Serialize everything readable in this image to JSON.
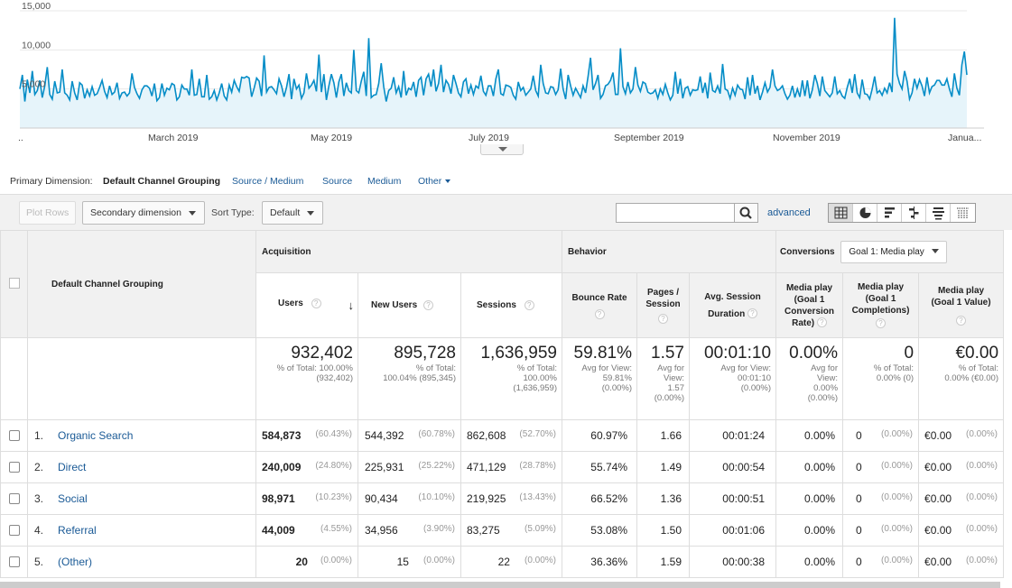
{
  "chart": {
    "y_ticks": [
      "15,000",
      "10,000",
      "5,000"
    ],
    "x_labels": [
      "..",
      "March 2019",
      "May 2019",
      "July 2019",
      "September 2019",
      "November 2019",
      "Janua..."
    ],
    "line_color": "#058dc7",
    "fill_color": "#e6f4fa"
  },
  "chart_data": {
    "type": "area",
    "title": "",
    "ylim": [
      0,
      15000
    ],
    "grid": true,
    "series": [
      {
        "values": [
          5000,
          6800,
          3400,
          6200,
          4500,
          7300,
          4300,
          4800,
          6100,
          3900,
          5400,
          7800,
          4300,
          3700,
          6000,
          4500,
          4600,
          7500,
          4500,
          4200,
          3600,
          6000,
          4500,
          3600,
          5800,
          5500,
          3800,
          4900,
          4100,
          5300,
          4200,
          4400,
          5200,
          6100,
          4700,
          3900,
          5400,
          4300,
          4600,
          5800,
          3800,
          4500,
          4600,
          4100,
          4500,
          7000,
          5200,
          4400,
          3800,
          4900,
          5400,
          5400,
          5100,
          4100,
          5700,
          3500,
          3900,
          5700,
          4200,
          5100,
          4900,
          5700,
          5500,
          3600,
          4000,
          5500,
          5000,
          5000,
          4200,
          7500,
          4200,
          4300,
          6300,
          4000,
          4000,
          6800,
          3700,
          4000,
          4800,
          3600,
          4500,
          5700,
          4100,
          3600,
          5500,
          4600,
          6100,
          5300,
          4700,
          6500,
          6400,
          6600,
          6400,
          4000,
          5100,
          6400,
          6000,
          4100,
          9300,
          4600,
          5200,
          5300,
          4900,
          4400,
          6300,
          5400,
          4000,
          5200,
          6900,
          3700,
          6300,
          5000,
          5500,
          3800,
          4500,
          7000,
          5100,
          5500,
          6100,
          4700,
          9400,
          4600,
          6900,
          3600,
          5400,
          6900,
          5800,
          3900,
          5900,
          6900,
          4100,
          5800,
          4800,
          4500,
          10000,
          4800,
          4500,
          6000,
          7200,
          4100,
          11500,
          3900,
          4200,
          4300,
          5700,
          8300,
          5300,
          3400,
          4800,
          5100,
          6500,
          4500,
          5300,
          3900,
          7300,
          4200,
          5100,
          4900,
          5900,
          4000,
          6100,
          6500,
          4200,
          6300,
          6900,
          5300,
          7500,
          4700,
          5700,
          8100,
          4600,
          6100,
          5600,
          4400,
          6800,
          5700,
          4500,
          4000,
          5900,
          6300,
          4400,
          5500,
          4300,
          5400,
          5100,
          6700,
          4700,
          4200,
          5400,
          5400,
          4100,
          6300,
          7500,
          4400,
          4200,
          5500,
          5400,
          5200,
          4200,
          3700,
          5900,
          4800,
          5200,
          4200,
          4600,
          5000,
          6700,
          4800,
          4100,
          8100,
          5700,
          4500,
          4400,
          5300,
          5200,
          4300,
          4900,
          7600,
          5000,
          3700,
          6800,
          5400,
          4200,
          5100,
          4500,
          3900,
          5400,
          4500,
          6600,
          9000,
          4900,
          5700,
          6800,
          3800,
          4300,
          5400,
          5600,
          6100,
          7100,
          4300,
          4300,
          10200,
          5300,
          4400,
          5900,
          4500,
          5000,
          7800,
          5500,
          4700,
          5900,
          5700,
          4600,
          4400,
          4500,
          4900,
          3800,
          5000,
          4300,
          5600,
          4500,
          3600,
          4200,
          7200,
          4400,
          6300,
          3800,
          5100,
          5300,
          4200,
          4900,
          4800,
          4900,
          6600,
          4500,
          5800,
          3800,
          7100,
          4800,
          4600,
          5400,
          4400,
          8200,
          5000,
          4800,
          3800,
          5100,
          4200,
          5500,
          5000,
          4900,
          3700,
          6500,
          4200,
          6800,
          4400,
          5400,
          3600,
          4600,
          5800,
          4600,
          5200,
          7500,
          5400,
          4800,
          5000,
          5400,
          4400,
          3700,
          4200,
          5400,
          3900,
          5000,
          4000,
          6100,
          4100,
          6100,
          3800,
          4900,
          6800,
          5700,
          4100,
          6600,
          4800,
          4400,
          4000,
          4500,
          6600,
          4400,
          4800,
          4100,
          3800,
          5200,
          6300,
          4500,
          6900,
          4500,
          3900,
          6200,
          4400,
          4300,
          3700,
          5000,
          6600,
          4500,
          4800,
          4200,
          5100,
          4500,
          5800,
          4600,
          14100,
          6900,
          5700,
          5000,
          7300,
          6000,
          3700,
          4500,
          6300,
          5100,
          6200,
          5400,
          4100,
          6500,
          4500,
          5300,
          5500,
          6100,
          6100,
          5500,
          5500,
          6300,
          5000,
          4000,
          7000,
          5100,
          4200,
          8100,
          9800,
          6800
        ]
      }
    ]
  },
  "primary_dimension": {
    "label": "Primary Dimension:",
    "selected": "Default Channel Grouping",
    "options": [
      "Source / Medium",
      "Source",
      "Medium",
      "Other"
    ]
  },
  "toolbar": {
    "plot_rows": "Plot Rows",
    "secondary_dimension": "Secondary dimension",
    "sort_type_label": "Sort Type:",
    "sort_type_value": "Default",
    "search_placeholder": "",
    "advanced": "advanced"
  },
  "table": {
    "dimension_header": "Default Channel Grouping",
    "groups": {
      "acquisition": "Acquisition",
      "behavior": "Behavior",
      "conversions": "Conversions",
      "goal_select": "Goal 1: Media play"
    },
    "columns": {
      "users": "Users",
      "new_users": "New Users",
      "sessions": "Sessions",
      "bounce_rate": "Bounce Rate",
      "pages_session_1": "Pages /",
      "pages_session_2": "Session",
      "avg_duration_1": "Avg. Session",
      "avg_duration_2": "Duration",
      "cr_1": "Media play",
      "cr_2": "(Goal 1",
      "cr_3": "Conversion",
      "cr_4": "Rate)",
      "comp_1": "Media play",
      "comp_2": "(Goal 1",
      "comp_3": "Completions)",
      "val_1": "Media play",
      "val_2": "(Goal 1 Value)"
    },
    "totals": {
      "users": "932,402",
      "users_sub1": "% of Total: 100.00%",
      "users_sub2": "(932,402)",
      "new_users": "895,728",
      "new_users_sub1": "% of Total:",
      "new_users_sub2": "100.04% (895,345)",
      "sessions": "1,636,959",
      "sessions_sub1": "% of Total:",
      "sessions_sub2": "100.00%",
      "sessions_sub3": "(1,636,959)",
      "bounce_rate": "59.81%",
      "bounce_rate_sub1": "Avg for View:",
      "bounce_rate_sub2": "59.81%",
      "bounce_rate_sub3": "(0.00%)",
      "pages": "1.57",
      "pages_sub1": "Avg for",
      "pages_sub2": "View:",
      "pages_sub3": "1.57",
      "pages_sub4": "(0.00%)",
      "duration": "00:01:10",
      "duration_sub1": "Avg for View:",
      "duration_sub2": "00:01:10",
      "duration_sub3": "(0.00%)",
      "cr": "0.00%",
      "cr_sub1": "Avg for",
      "cr_sub2": "View:",
      "cr_sub3": "0.00%",
      "cr_sub4": "(0.00%)",
      "comp": "0",
      "comp_sub1": "% of Total:",
      "comp_sub2": "0.00% (0)",
      "val": "€0.00",
      "val_sub1": "% of Total:",
      "val_sub2": "0.00% (€0.00)"
    },
    "rows": [
      {
        "idx": "1.",
        "name": "Organic Search",
        "users": "584,873",
        "users_pct": "(60.43%)",
        "new_users": "544,392",
        "new_users_pct": "(60.78%)",
        "sessions": "862,608",
        "sessions_pct": "(52.70%)",
        "bounce": "60.97%",
        "pages": "1.66",
        "duration": "00:01:24",
        "cr": "0.00%",
        "comp": "0",
        "comp_pct": "(0.00%)",
        "val": "€0.00",
        "val_pct": "(0.00%)"
      },
      {
        "idx": "2.",
        "name": "Direct",
        "users": "240,009",
        "users_pct": "(24.80%)",
        "new_users": "225,931",
        "new_users_pct": "(25.22%)",
        "sessions": "471,129",
        "sessions_pct": "(28.78%)",
        "bounce": "55.74%",
        "pages": "1.49",
        "duration": "00:00:54",
        "cr": "0.00%",
        "comp": "0",
        "comp_pct": "(0.00%)",
        "val": "€0.00",
        "val_pct": "(0.00%)"
      },
      {
        "idx": "3.",
        "name": "Social",
        "users": "98,971",
        "users_pct": "(10.23%)",
        "new_users": "90,434",
        "new_users_pct": "(10.10%)",
        "sessions": "219,925",
        "sessions_pct": "(13.43%)",
        "bounce": "66.52%",
        "pages": "1.36",
        "duration": "00:00:51",
        "cr": "0.00%",
        "comp": "0",
        "comp_pct": "(0.00%)",
        "val": "€0.00",
        "val_pct": "(0.00%)"
      },
      {
        "idx": "4.",
        "name": "Referral",
        "users": "44,009",
        "users_pct": "(4.55%)",
        "new_users": "34,956",
        "new_users_pct": "(3.90%)",
        "sessions": "83,275",
        "sessions_pct": "(5.09%)",
        "bounce": "53.08%",
        "pages": "1.50",
        "duration": "00:01:06",
        "cr": "0.00%",
        "comp": "0",
        "comp_pct": "(0.00%)",
        "val": "€0.00",
        "val_pct": "(0.00%)"
      },
      {
        "idx": "5.",
        "name": "(Other)",
        "users": "20",
        "users_pct": "(0.00%)",
        "new_users": "15",
        "new_users_pct": "(0.00%)",
        "sessions": "22",
        "sessions_pct": "(0.00%)",
        "bounce": "36.36%",
        "pages": "1.59",
        "duration": "00:00:38",
        "cr": "0.00%",
        "comp": "0",
        "comp_pct": "(0.00%)",
        "val": "€0.00",
        "val_pct": "(0.00%)"
      }
    ]
  }
}
